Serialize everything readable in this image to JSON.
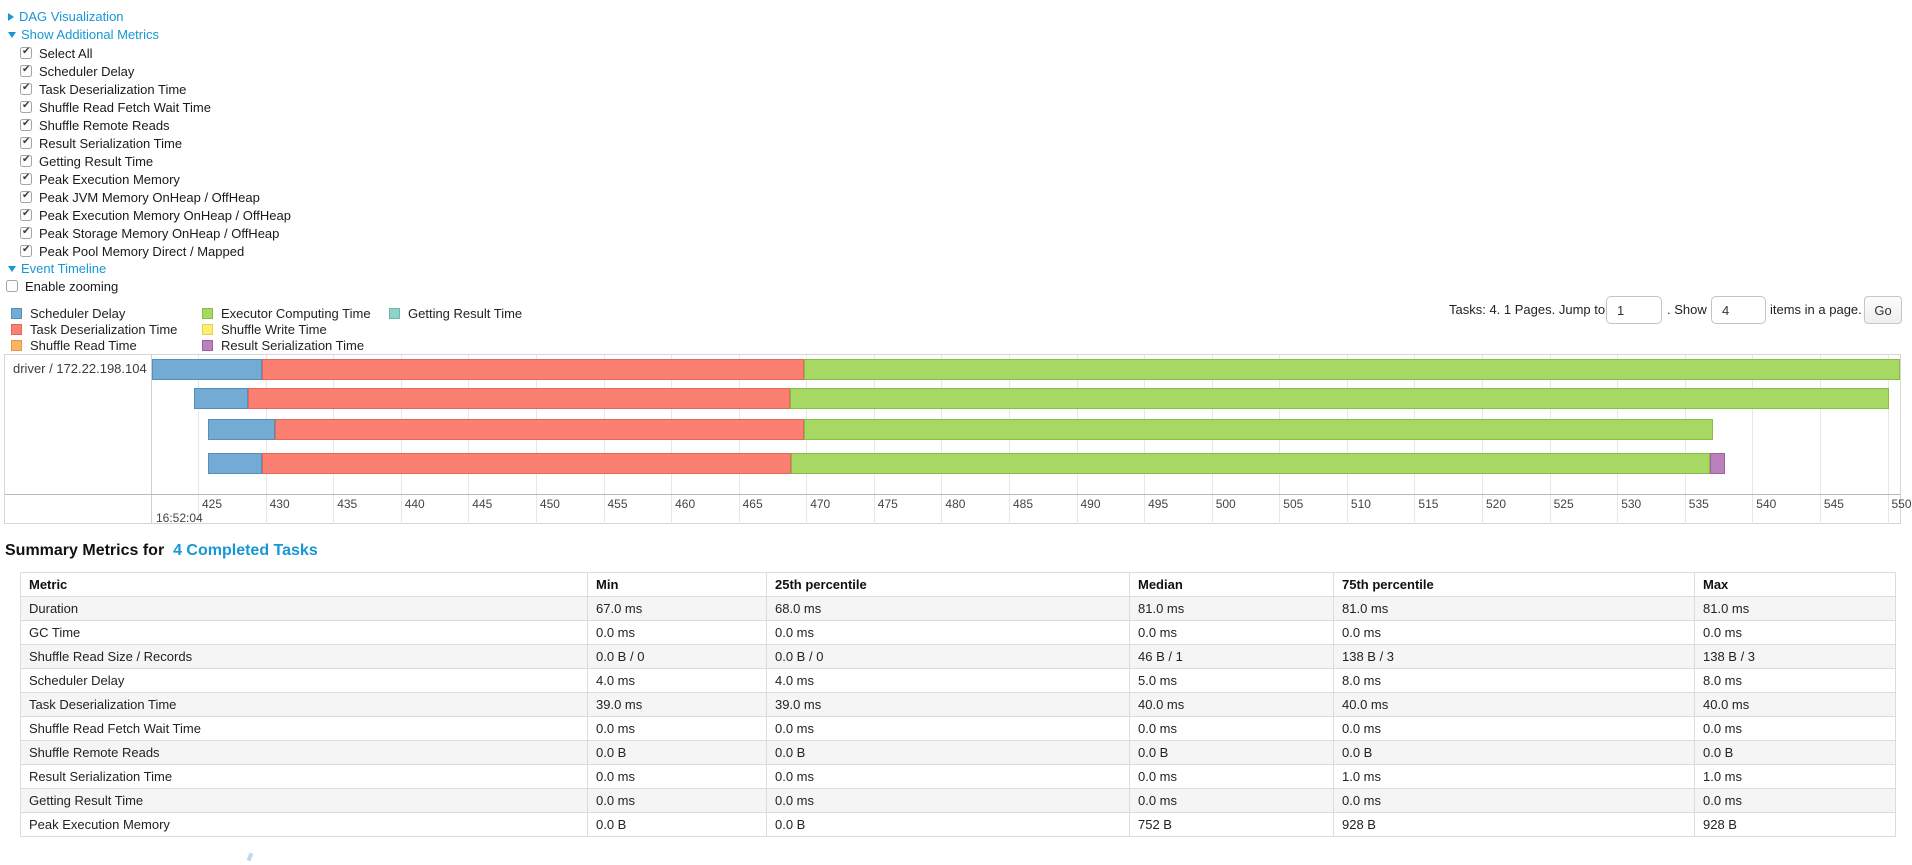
{
  "controls": {
    "dag_link": "DAG Visualization",
    "metrics_link": "Show Additional Metrics",
    "metric_checkboxes": [
      {
        "label": "Select All",
        "checked": true
      },
      {
        "label": "Scheduler Delay",
        "checked": true
      },
      {
        "label": "Task Deserialization Time",
        "checked": true
      },
      {
        "label": "Shuffle Read Fetch Wait Time",
        "checked": true
      },
      {
        "label": "Shuffle Remote Reads",
        "checked": true
      },
      {
        "label": "Result Serialization Time",
        "checked": true
      },
      {
        "label": "Getting Result Time",
        "checked": true
      },
      {
        "label": "Peak Execution Memory",
        "checked": true
      },
      {
        "label": "Peak JVM Memory OnHeap / OffHeap",
        "checked": true
      },
      {
        "label": "Peak Execution Memory OnHeap / OffHeap",
        "checked": true
      },
      {
        "label": "Peak Storage Memory OnHeap / OffHeap",
        "checked": true
      },
      {
        "label": "Peak Pool Memory Direct / Mapped",
        "checked": true
      }
    ],
    "event_timeline_link": "Event Timeline",
    "enable_zooming": {
      "label": "Enable zooming",
      "checked": false
    }
  },
  "legend": {
    "columns": [
      [
        {
          "key": "scheduler_delay",
          "label": "Scheduler Delay"
        },
        {
          "key": "task_deserialization_time",
          "label": "Task Deserialization Time"
        },
        {
          "key": "shuffle_read_time",
          "label": "Shuffle Read Time"
        }
      ],
      [
        {
          "key": "executor_computing_time",
          "label": "Executor Computing Time"
        },
        {
          "key": "shuffle_write_time",
          "label": "Shuffle Write Time"
        },
        {
          "key": "result_serialization_time",
          "label": "Result Serialization Time"
        }
      ],
      [
        {
          "key": "getting_result_time",
          "label": "Getting Result Time"
        }
      ]
    ]
  },
  "pagination": {
    "tasks_text": "Tasks: 4. 1 Pages. Jump to",
    "jump_value": "1",
    "show_text": ". Show",
    "show_value": "4",
    "items_text": "items in a page.",
    "go_label": "Go"
  },
  "chart_data": {
    "type": "bar",
    "variant": "horizontal-stacked-event-timeline",
    "group_label": "driver / 172.22.198.104",
    "x_axis": {
      "unit": "ms",
      "tick_start": 425,
      "tick_end": 550,
      "tick_step": 5,
      "major_label": "16:52:04",
      "xlim": [
        421.5,
        551.0
      ]
    },
    "metric_colors": {
      "scheduler_delay": {
        "fill": "#74ABD4",
        "border": "#548FBC"
      },
      "task_deserialization_time": {
        "fill": "#FB8072",
        "border": "#E0685C"
      },
      "shuffle_read_time": {
        "fill": "#FDB462",
        "border": "#E09A43"
      },
      "executor_computing_time": {
        "fill": "#A8D864",
        "border": "#8ABD45"
      },
      "shuffle_write_time": {
        "fill": "#FFED6F",
        "border": "#E3D150"
      },
      "result_serialization_time": {
        "fill": "#BC80BD",
        "border": "#9E61A0"
      },
      "getting_result_time": {
        "fill": "#8DD3C7",
        "border": "#69B8AA"
      }
    },
    "tasks": [
      {
        "name": "task-bar-1",
        "segments": [
          {
            "metric": "scheduler_delay",
            "from": 421.6,
            "to": 429.7
          },
          {
            "metric": "task_deserialization_time",
            "from": 429.7,
            "to": 469.8
          },
          {
            "metric": "executor_computing_time",
            "from": 469.8,
            "to": 550.9
          }
        ]
      },
      {
        "name": "task-bar-2",
        "segments": [
          {
            "metric": "scheduler_delay",
            "from": 424.7,
            "to": 428.7
          },
          {
            "metric": "task_deserialization_time",
            "from": 428.7,
            "to": 468.8
          },
          {
            "metric": "executor_computing_time",
            "from": 468.8,
            "to": 550.1
          }
        ]
      },
      {
        "name": "task-bar-3",
        "segments": [
          {
            "metric": "scheduler_delay",
            "from": 425.7,
            "to": 430.7
          },
          {
            "metric": "task_deserialization_time",
            "from": 430.7,
            "to": 469.8
          },
          {
            "metric": "executor_computing_time",
            "from": 469.8,
            "to": 537.1
          }
        ]
      },
      {
        "name": "task-bar-4",
        "segments": [
          {
            "metric": "scheduler_delay",
            "from": 425.7,
            "to": 429.7
          },
          {
            "metric": "task_deserialization_time",
            "from": 429.7,
            "to": 468.9
          },
          {
            "metric": "executor_computing_time",
            "from": 468.9,
            "to": 536.9
          },
          {
            "metric": "result_serialization_time",
            "from": 536.9,
            "to": 538.0
          }
        ]
      }
    ]
  },
  "summary": {
    "title_prefix": "Summary Metrics for",
    "title_link": "4 Completed Tasks",
    "columns": [
      "Metric",
      "Min",
      "25th percentile",
      "Median",
      "75th percentile",
      "Max"
    ],
    "rows": [
      {
        "metric": "Duration",
        "values": [
          "67.0 ms",
          "68.0 ms",
          "81.0 ms",
          "81.0 ms",
          "81.0 ms"
        ]
      },
      {
        "metric": "GC Time",
        "values": [
          "0.0 ms",
          "0.0 ms",
          "0.0 ms",
          "0.0 ms",
          "0.0 ms"
        ]
      },
      {
        "metric": "Shuffle Read Size / Records",
        "values": [
          "0.0 B / 0",
          "0.0 B / 0",
          "46 B / 1",
          "138 B / 3",
          "138 B / 3"
        ]
      },
      {
        "metric": "Scheduler Delay",
        "values": [
          "4.0 ms",
          "4.0 ms",
          "5.0 ms",
          "8.0 ms",
          "8.0 ms"
        ]
      },
      {
        "metric": "Task Deserialization Time",
        "values": [
          "39.0 ms",
          "39.0 ms",
          "40.0 ms",
          "40.0 ms",
          "40.0 ms"
        ]
      },
      {
        "metric": "Shuffle Read Fetch Wait Time",
        "values": [
          "0.0 ms",
          "0.0 ms",
          "0.0 ms",
          "0.0 ms",
          "0.0 ms"
        ]
      },
      {
        "metric": "Shuffle Remote Reads",
        "values": [
          "0.0 B",
          "0.0 B",
          "0.0 B",
          "0.0 B",
          "0.0 B"
        ]
      },
      {
        "metric": "Result Serialization Time",
        "values": [
          "0.0 ms",
          "0.0 ms",
          "0.0 ms",
          "1.0 ms",
          "1.0 ms"
        ]
      },
      {
        "metric": "Getting Result Time",
        "values": [
          "0.0 ms",
          "0.0 ms",
          "0.0 ms",
          "0.0 ms",
          "0.0 ms"
        ]
      },
      {
        "metric": "Peak Execution Memory",
        "values": [
          "0.0 B",
          "0.0 B",
          "752 B",
          "928 B",
          "928 B"
        ]
      }
    ]
  }
}
